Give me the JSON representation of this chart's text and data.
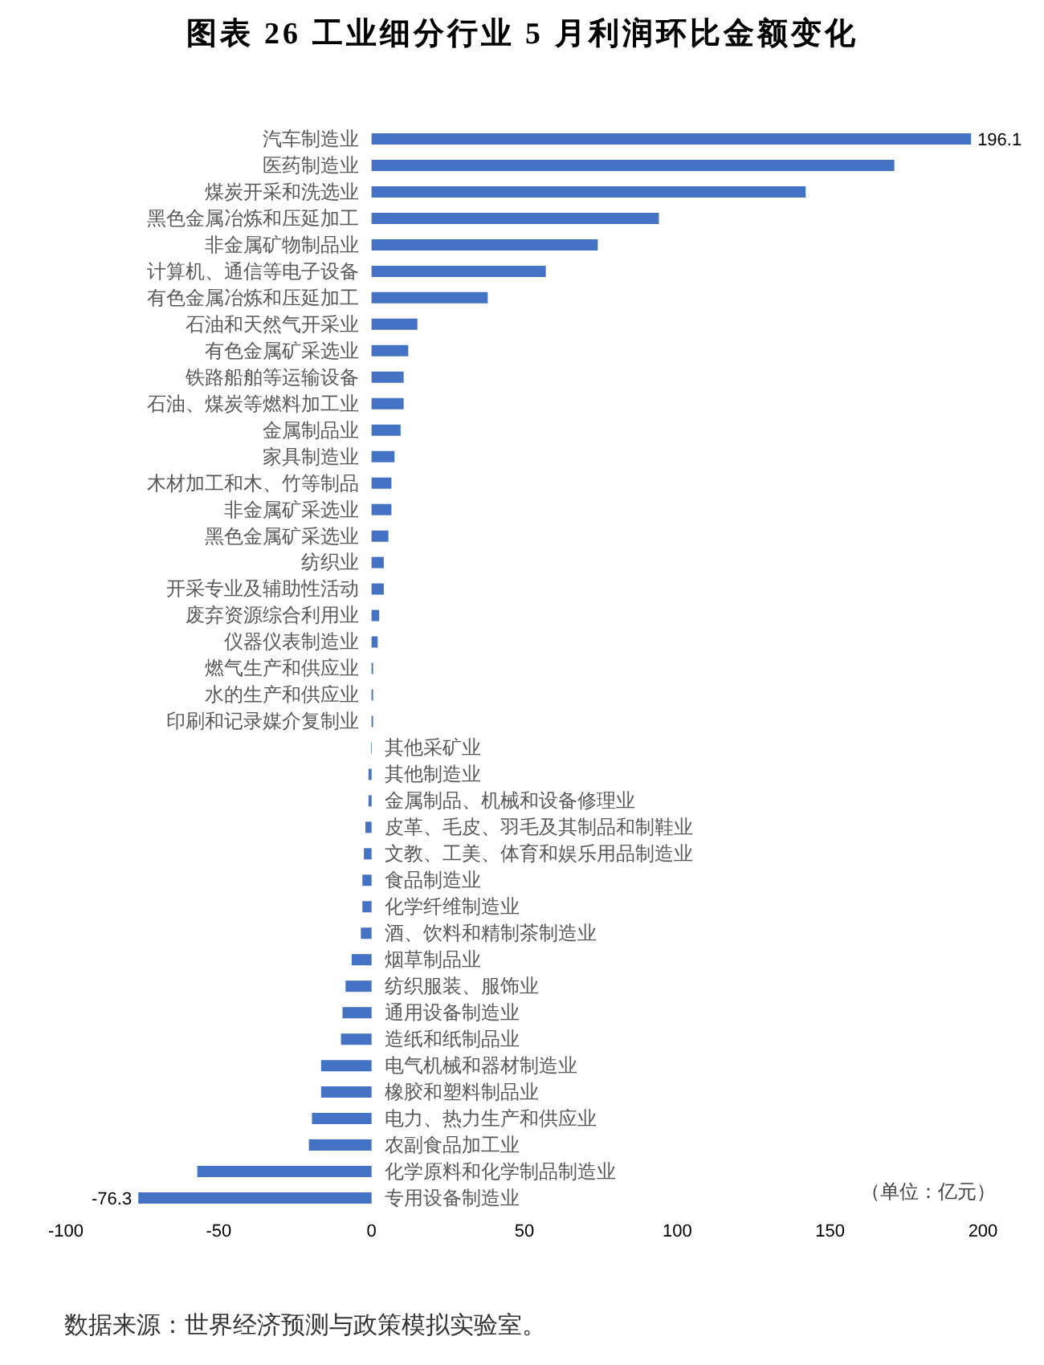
{
  "chart_data": {
    "type": "bar",
    "orientation": "horizontal",
    "title": "图表 26 工业细分行业 5 月利润环比金额变化",
    "categories": [
      "汽车制造业",
      "医药制造业",
      "煤炭开采和洗选业",
      "黑色金属冶炼和压延加工",
      "非金属矿物制品业",
      "计算机、通信等电子设备",
      "有色金属冶炼和压延加工",
      "石油和天然气开采业",
      "有色金属矿采选业",
      "铁路船舶等运输设备",
      "石油、煤炭等燃料加工业",
      "金属制品业",
      "家具制造业",
      "木材加工和木、竹等制品",
      "非金属矿采选业",
      "黑色金属矿采选业",
      "纺织业",
      "开采专业及辅助性活动",
      "废弃资源综合利用业",
      "仪器仪表制造业",
      "燃气生产和供应业",
      "水的生产和供应业",
      "印刷和记录媒介复制业",
      "其他采矿业",
      "其他制造业",
      "金属制品、机械和设备修理业",
      "皮革、毛皮、羽毛及其制品和制鞋业",
      "文教、工美、体育和娱乐用品制造业",
      "食品制造业",
      "化学纤维制造业",
      "酒、饮料和精制茶制造业",
      "烟草制品业",
      "纺织服装、服饰业",
      "通用设备制造业",
      "造纸和纸制品业",
      "电气机械和器材制造业",
      "橡胶和塑料制品业",
      "电力、热力生产和供应业",
      "农副食品加工业",
      "化学原料和化学制品制造业",
      "专用设备制造业"
    ],
    "values": [
      196.1,
      171,
      142,
      94,
      74,
      57,
      38,
      15,
      12,
      10.5,
      10.5,
      9.5,
      7.5,
      6.5,
      6.5,
      5.5,
      4,
      4,
      2.5,
      2,
      0.5,
      0.5,
      0.5,
      -0.2,
      -1,
      -1,
      -2,
      -2.5,
      -3,
      -3,
      -3.5,
      -6.5,
      -8.5,
      -9.5,
      -10,
      -16.5,
      -16.5,
      -19.5,
      -20.5,
      -57,
      -76.3
    ],
    "value_labels": [
      "196.1",
      null,
      null,
      null,
      null,
      null,
      null,
      null,
      null,
      null,
      null,
      null,
      null,
      null,
      null,
      null,
      null,
      null,
      null,
      null,
      null,
      null,
      null,
      null,
      null,
      null,
      null,
      null,
      null,
      null,
      null,
      null,
      null,
      null,
      null,
      null,
      null,
      null,
      null,
      null,
      "-76.3"
    ],
    "color": "#4472c4",
    "xlim": [
      -100,
      200
    ],
    "xticks": [
      -100,
      -50,
      0,
      50,
      100,
      150,
      200
    ],
    "annotations": [
      "（单位：亿元）",
      "数据来源：世界经济预测与政策模拟实验室。"
    ]
  }
}
